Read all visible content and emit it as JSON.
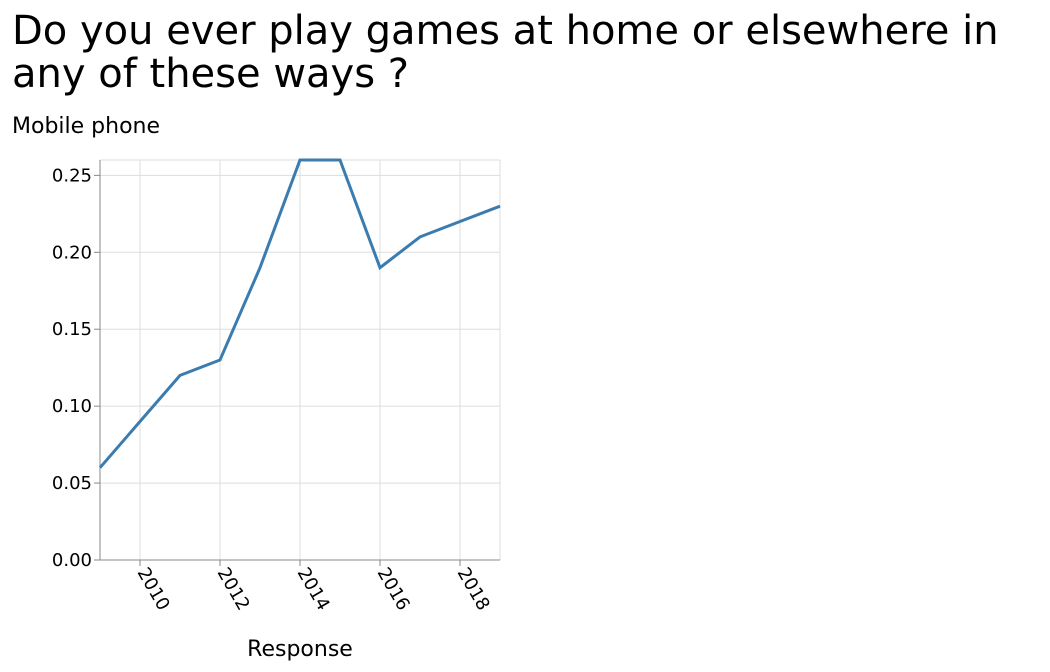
{
  "chart_data": {
    "type": "line",
    "title": "Do you ever play games at home or elsewhere in any of these ways ?",
    "xlabel": "Response",
    "ylabel": "Mobile phone",
    "x": [
      2009,
      2010,
      2011,
      2012,
      2013,
      2014,
      2015,
      2016,
      2017,
      2018,
      2019
    ],
    "series": [
      {
        "values": [
          0.06,
          0.09,
          0.12,
          0.13,
          0.19,
          0.26,
          0.26,
          0.19,
          0.21,
          0.22,
          0.23
        ]
      }
    ],
    "xlim": [
      2009,
      2019
    ],
    "ylim": [
      0,
      0.26
    ],
    "x_ticks": [
      2010,
      2012,
      2014,
      2016,
      2018
    ],
    "y_ticks": [
      "0.00",
      "0.05",
      "0.10",
      "0.15",
      "0.20",
      "0.25"
    ],
    "grid": true,
    "line_color": "#3a7cb0",
    "grid_color": "#dddddd"
  }
}
